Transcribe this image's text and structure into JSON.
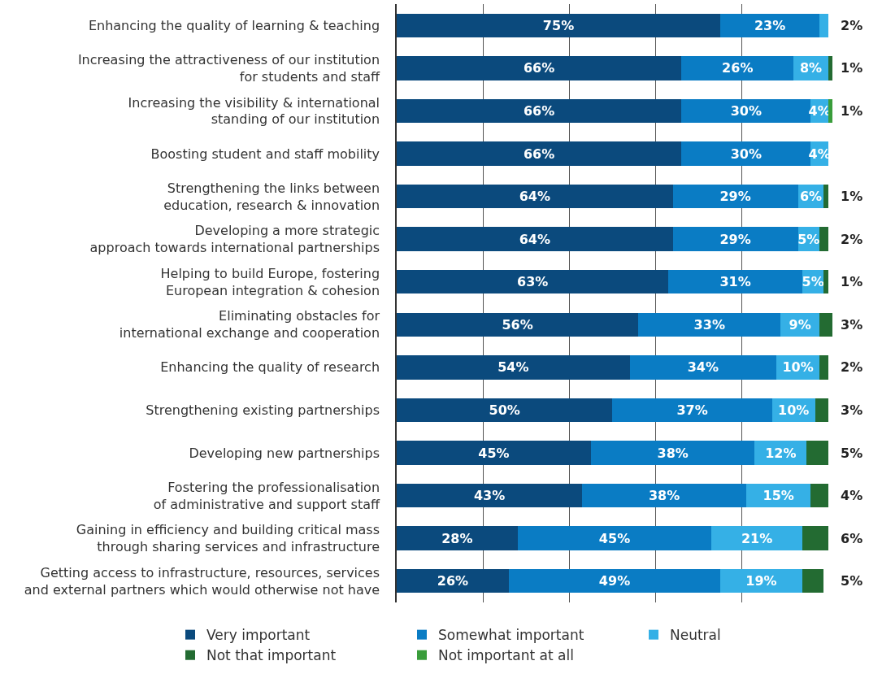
{
  "chart_data": {
    "type": "bar",
    "orientation": "horizontal",
    "stacked": true,
    "categories": [
      "Enhancing the quality of learning & teaching",
      "Increasing the attractiveness of our institution\nfor students and staff",
      "Increasing the visibility & international\nstanding of our institution",
      "Boosting student and staff mobility",
      "Strengthening the links between\neducation, research & innovation",
      "Developing a more strategic\napproach towards international partnerships",
      "Helping to build Europe, fostering\nEuropean integration & cohesion",
      "Eliminating obstacles for\ninternational exchange and cooperation",
      "Enhancing the quality of research",
      "Strengthening existing partnerships",
      "Developing new partnerships",
      "Fostering the professionalisation\nof administrative and support staff",
      "Gaining in efficiency and building critical mass\nthrough sharing services and infrastructure",
      "Getting access to infrastructure, resources, services\nand external partners which would otherwise not have"
    ],
    "series": [
      {
        "name": "Very important",
        "color": "#0b4a7d",
        "values": [
          75,
          66,
          66,
          66,
          64,
          64,
          63,
          56,
          54,
          50,
          45,
          43,
          28,
          26
        ],
        "value_labels": [
          "75%",
          "66%",
          "66%",
          "66%",
          "64%",
          "64%",
          "63%",
          "56%",
          "54%",
          "50%",
          "45%",
          "43%",
          "28%",
          "26%"
        ]
      },
      {
        "name": "Somewhat important",
        "color": "#0a7cc4",
        "values": [
          23,
          26,
          30,
          30,
          29,
          29,
          31,
          33,
          34,
          37,
          38,
          38,
          45,
          49
        ],
        "value_labels": [
          "23%",
          "26%",
          "30%",
          "30%",
          "29%",
          "29%",
          "31%",
          "33%",
          "34%",
          "37%",
          "38%",
          "38%",
          "45%",
          "49%"
        ]
      },
      {
        "name": "Neutral",
        "color": "#35b0e6",
        "values": [
          2,
          8,
          4,
          4,
          6,
          5,
          5,
          9,
          10,
          10,
          12,
          15,
          21,
          19
        ],
        "value_labels": [
          "2%",
          "8%",
          "4%",
          "4%",
          "6%",
          "5%",
          "5%",
          "9%",
          "10%",
          "10%",
          "12%",
          "15%",
          "21%",
          "19%"
        ]
      },
      {
        "name": "Not that important",
        "color": "#236b32",
        "values": [
          null,
          1,
          null,
          null,
          1,
          2,
          1,
          3,
          2,
          3,
          5,
          4,
          6,
          5
        ],
        "value_labels": [
          null,
          "1%",
          null,
          null,
          "1%",
          "2%",
          "1%",
          "3%",
          "2%",
          "3%",
          "5%",
          "4%",
          "6%",
          "5%"
        ]
      },
      {
        "name": "Not important at all",
        "color": "#3a9d3b",
        "values": [
          null,
          null,
          1,
          null,
          null,
          null,
          null,
          null,
          null,
          null,
          null,
          null,
          null,
          null
        ],
        "value_labels": [
          null,
          null,
          "1%",
          null,
          null,
          null,
          null,
          null,
          null,
          null,
          null,
          null,
          null,
          null
        ]
      }
    ],
    "xlim": [
      0,
      101
    ],
    "xticks": [
      {
        "value": 20,
        "label": null
      },
      {
        "value": 40,
        "label": null
      },
      {
        "value": 60,
        "label": null
      },
      {
        "value": 80,
        "label": null
      }
    ],
    "tick_labels": "y",
    "grid": "x",
    "legend": "bottom"
  }
}
